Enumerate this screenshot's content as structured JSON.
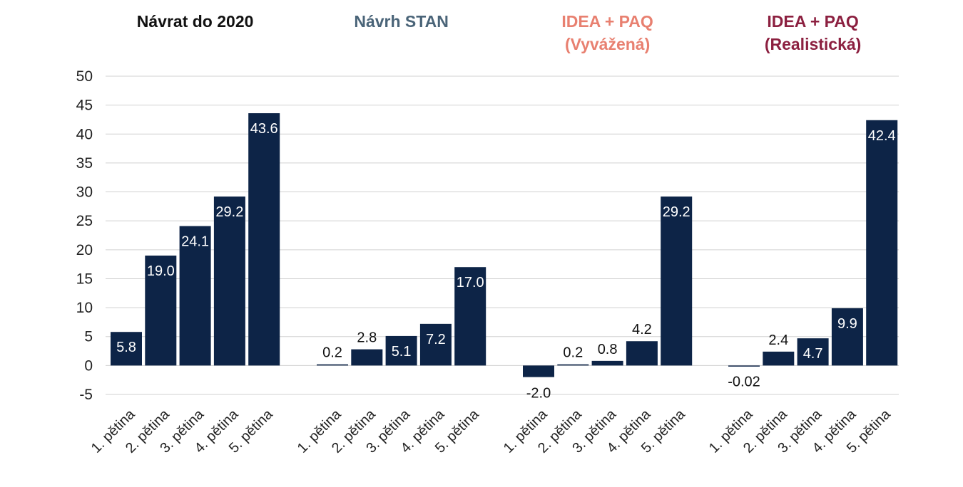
{
  "chart_data": {
    "type": "bar",
    "ylim": [
      -5,
      50
    ],
    "yticks": [
      -5,
      0,
      5,
      10,
      15,
      20,
      25,
      30,
      35,
      40,
      45,
      50
    ],
    "grid": true,
    "bar_color": "#0d2447",
    "groups": [
      {
        "title": [
          "Návrat do 2020"
        ],
        "title_color": "#111111",
        "categories": [
          "1. pětina",
          "2. pětina",
          "3. pětina",
          "4. pětina",
          "5. pětina"
        ],
        "values": [
          5.8,
          19.0,
          24.1,
          29.2,
          43.6
        ],
        "labels": [
          "5.8",
          "19.0",
          "24.1",
          "29.2",
          "43.6"
        ]
      },
      {
        "title": [
          "Návrh STAN"
        ],
        "title_color": "#4a6478",
        "categories": [
          "1. pětina",
          "2. pětina",
          "3. pětina",
          "4. pětina",
          "5. pětina"
        ],
        "values": [
          0.2,
          2.8,
          5.1,
          7.2,
          17.0
        ],
        "labels": [
          "0.2",
          "2.8",
          "5.1",
          "7.2",
          "17.0"
        ]
      },
      {
        "title": [
          "IDEA + PAQ",
          "(Vyvážená)"
        ],
        "title_color": "#e88070",
        "categories": [
          "1. pětina",
          "2. pětina",
          "3. pětina",
          "4. pětina",
          "5. pětina"
        ],
        "values": [
          -2.0,
          0.2,
          0.8,
          4.2,
          29.2
        ],
        "labels": [
          "-2.0",
          "0.2",
          "0.8",
          "4.2",
          "29.2"
        ]
      },
      {
        "title": [
          "IDEA + PAQ",
          "(Realistická)"
        ],
        "title_color": "#8c2040",
        "categories": [
          "1. pětina",
          "2. pětina",
          "3. pětina",
          "4. pětina",
          "5. pětina"
        ],
        "values": [
          -0.02,
          2.4,
          4.7,
          9.9,
          42.4
        ],
        "labels": [
          "-0.02",
          "2.4",
          "4.7",
          "9.9",
          "42.4"
        ]
      }
    ]
  }
}
